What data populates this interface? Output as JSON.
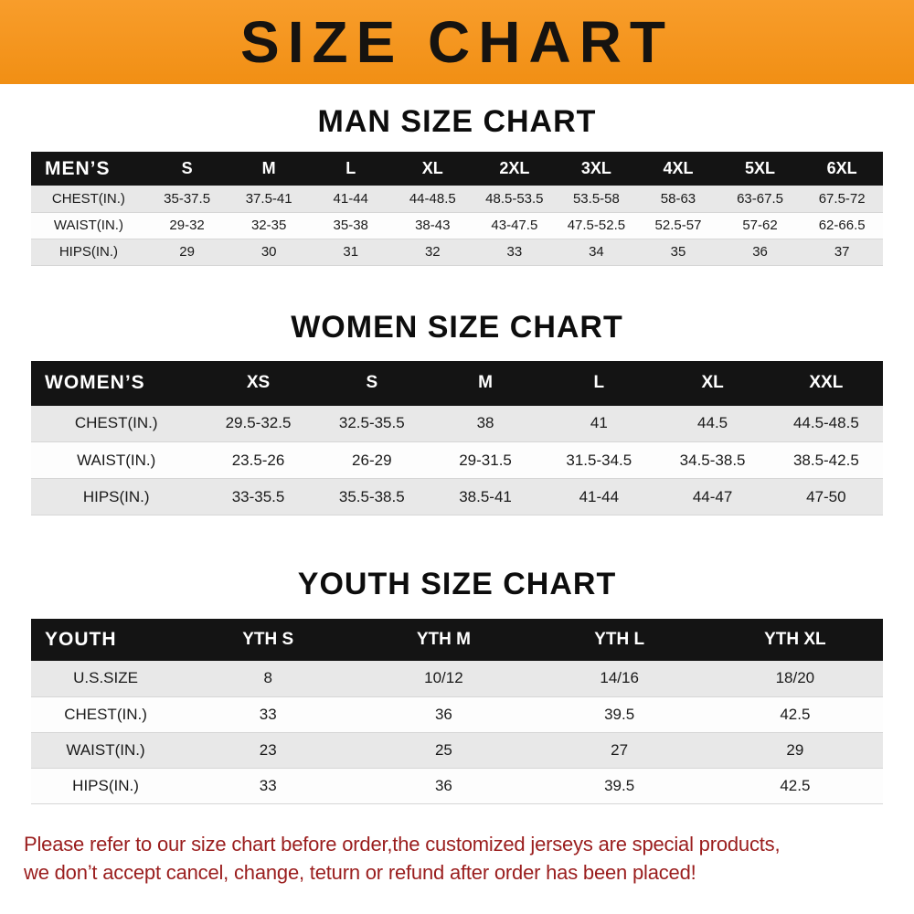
{
  "banner": {
    "title": "SIZE CHART"
  },
  "colors": {
    "banner_bg": "#f18f14",
    "table_header_bg": "#141414",
    "row_alt_bg": "#e8e8e8",
    "footer_text": "#9a1d1d"
  },
  "chart_data": [
    {
      "type": "table",
      "title": "MAN SIZE CHART",
      "columns": [
        "MEN’S",
        "S",
        "M",
        "L",
        "XL",
        "2XL",
        "3XL",
        "4XL",
        "5XL",
        "6XL"
      ],
      "rows": [
        [
          "CHEST(IN.)",
          "35-37.5",
          "37.5-41",
          "41-44",
          "44-48.5",
          "48.5-53.5",
          "53.5-58",
          "58-63",
          "63-67.5",
          "67.5-72"
        ],
        [
          "WAIST(IN.)",
          "29-32",
          "32-35",
          "35-38",
          "38-43",
          "43-47.5",
          "47.5-52.5",
          "52.5-57",
          "57-62",
          "62-66.5"
        ],
        [
          "HIPS(IN.)",
          "29",
          "30",
          "31",
          "32",
          "33",
          "34",
          "35",
          "36",
          "37"
        ]
      ]
    },
    {
      "type": "table",
      "title": "WOMEN SIZE CHART",
      "columns": [
        "WOMEN’S",
        "XS",
        "S",
        "M",
        "L",
        "XL",
        "XXL"
      ],
      "rows": [
        [
          "CHEST(IN.)",
          "29.5-32.5",
          "32.5-35.5",
          "38",
          "41",
          "44.5",
          "44.5-48.5"
        ],
        [
          "WAIST(IN.)",
          "23.5-26",
          "26-29",
          "29-31.5",
          "31.5-34.5",
          "34.5-38.5",
          "38.5-42.5"
        ],
        [
          "HIPS(IN.)",
          "33-35.5",
          "35.5-38.5",
          "38.5-41",
          "41-44",
          "44-47",
          "47-50"
        ]
      ]
    },
    {
      "type": "table",
      "title": "YOUTH SIZE CHART",
      "columns": [
        "YOUTH",
        "YTH S",
        "YTH M",
        "YTH L",
        "YTH XL"
      ],
      "rows": [
        [
          "U.S.SIZE",
          "8",
          "10/12",
          "14/16",
          "18/20"
        ],
        [
          "CHEST(IN.)",
          "33",
          "36",
          "39.5",
          "42.5"
        ],
        [
          "WAIST(IN.)",
          "23",
          "25",
          "27",
          "29"
        ],
        [
          "HIPS(IN.)",
          "33",
          "36",
          "39.5",
          "42.5"
        ]
      ]
    }
  ],
  "footer": {
    "line1": "Please refer to our size chart before order,the customized jerseys are special products,",
    "line2": "we don’t accept cancel, change, teturn or refund after order has been placed!"
  }
}
